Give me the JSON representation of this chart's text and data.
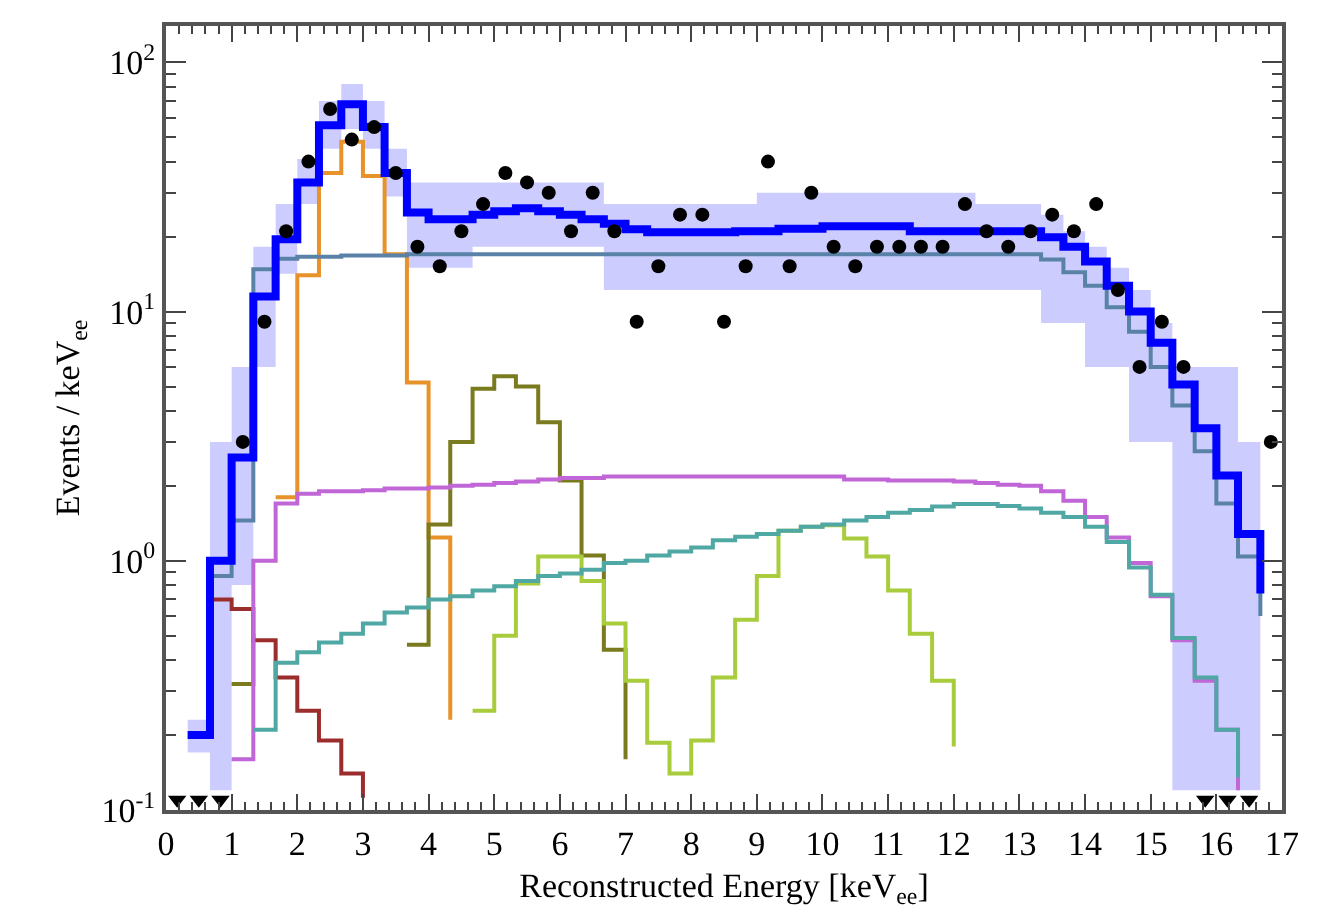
{
  "chart_data": {
    "type": "step",
    "xlabel": "Reconstructed Energy [keV$_{ee}$]",
    "ylabel": "Events / keV$_{ee}$",
    "log": true,
    "grid": false,
    "xlim": [
      0,
      17
    ],
    "xticks": [
      0,
      1,
      2,
      3,
      4,
      5,
      6,
      7,
      8,
      9,
      10,
      11,
      12,
      13,
      14,
      15,
      16,
      17
    ],
    "ylim": [
      0.1,
      140
    ],
    "yticks": [
      {
        "value": 0.1,
        "label": "10$^{-1}$"
      },
      {
        "value": 1,
        "label": "10$^{0}$"
      },
      {
        "value": 10,
        "label": "10$^{1}$"
      },
      {
        "value": 100,
        "label": "10$^{2}$"
      }
    ],
    "series": [
      {
        "color": "#9b2d2d",
        "x": [
          0.67,
          1,
          1.33,
          1.67,
          2,
          2.33,
          2.67,
          3
        ],
        "values": [
          0.7,
          0.64,
          0.48,
          0.34,
          0.25,
          0.19,
          0.14,
          0.112
        ]
      },
      {
        "color": "#e8922a",
        "x": [
          1.67,
          2,
          2.33,
          2.67,
          3,
          3.33,
          3.67,
          4,
          4.33
        ],
        "values": [
          1.8,
          14,
          36,
          48,
          35,
          17,
          5.2,
          1.24,
          0.23
        ]
      },
      {
        "color": "#7a7a1e",
        "x": [
          1,
          1.33,
          1.67,
          2,
          2.33,
          2.67,
          3,
          3.33,
          3.67,
          4,
          4.33,
          4.67,
          5,
          5.33,
          5.67,
          6,
          6.33,
          6.67,
          7
        ],
        "values": [
          0.32,
          0.51,
          null,
          null,
          null,
          null,
          null,
          null,
          0.46,
          1.4,
          3.0,
          4.9,
          5.5,
          5.0,
          3.6,
          2.1,
          1.05,
          0.44,
          0.16
        ]
      },
      {
        "color": "#a8cc3c",
        "x": [
          4.67,
          5,
          5.33,
          5.67,
          6,
          6.33,
          6.67,
          7,
          7.33,
          7.67,
          8,
          8.33,
          8.67,
          9,
          9.33,
          9.67,
          10,
          10.33,
          10.67,
          11,
          11.33,
          11.67,
          12
        ],
        "values": [
          0.25,
          0.5,
          0.81,
          1.04,
          1.04,
          0.83,
          0.56,
          0.33,
          0.186,
          0.14,
          0.19,
          0.34,
          0.58,
          0.87,
          1.32,
          1.37,
          1.39,
          1.23,
          1.04,
          0.76,
          0.51,
          0.33,
          0.18
        ]
      },
      {
        "color": "#c066d6",
        "x": [
          1,
          1.33,
          1.67,
          2,
          2.33,
          2.67,
          3,
          3.33,
          3.67,
          4,
          4.33,
          4.67,
          5,
          5.33,
          5.67,
          6,
          6.33,
          6.67,
          7,
          7.33,
          7.67,
          8,
          8.33,
          8.67,
          9,
          9.33,
          9.67,
          10,
          10.33,
          10.67,
          11,
          11.33,
          11.67,
          12,
          12.33,
          12.67,
          13,
          13.33,
          13.67,
          14,
          14.33,
          14.67,
          15,
          15.33,
          15.67,
          16,
          16.33
        ],
        "values": [
          0.16,
          1.0,
          1.7,
          1.86,
          1.9,
          1.9,
          1.92,
          1.95,
          1.95,
          1.97,
          2.0,
          2.02,
          2.05,
          2.08,
          2.12,
          2.15,
          2.15,
          2.18,
          2.18,
          2.18,
          2.18,
          2.18,
          2.18,
          2.18,
          2.18,
          2.18,
          2.18,
          2.18,
          2.12,
          2.12,
          2.1,
          2.1,
          2.1,
          2.08,
          2.05,
          2.02,
          2.0,
          1.9,
          1.74,
          1.5,
          1.24,
          0.98,
          0.72,
          0.48,
          0.33,
          0.21,
          0.12
        ]
      },
      {
        "color": "#4fa8a3",
        "x": [
          1.33,
          1.67,
          2,
          2.33,
          2.67,
          3,
          3.33,
          3.67,
          4,
          4.33,
          4.67,
          5,
          5.33,
          5.67,
          6,
          6.33,
          6.67,
          7,
          7.33,
          7.67,
          8,
          8.33,
          8.67,
          9,
          9.33,
          9.67,
          10,
          10.33,
          10.67,
          11,
          11.33,
          11.67,
          12,
          12.33,
          12.67,
          13,
          13.33,
          13.67,
          14,
          14.33,
          14.67,
          15,
          15.33,
          15.67,
          16,
          16.33
        ],
        "values": [
          0.21,
          0.39,
          0.43,
          0.47,
          0.51,
          0.56,
          0.62,
          0.65,
          0.7,
          0.72,
          0.76,
          0.79,
          0.83,
          0.87,
          0.89,
          0.92,
          0.98,
          1.0,
          1.05,
          1.09,
          1.13,
          1.21,
          1.25,
          1.28,
          1.32,
          1.37,
          1.4,
          1.45,
          1.5,
          1.56,
          1.6,
          1.65,
          1.69,
          1.69,
          1.66,
          1.62,
          1.56,
          1.5,
          1.37,
          1.19,
          0.94,
          0.73,
          0.49,
          0.34,
          0.21,
          0.135
        ]
      },
      {
        "color": "#5a82a8",
        "x": [
          0.67,
          1,
          1.33,
          1.67,
          2,
          2.33,
          2.67,
          3,
          3.33,
          3.67,
          4,
          4.33,
          4.67,
          5,
          5.33,
          5.67,
          6,
          6.33,
          6.67,
          7,
          7.33,
          7.67,
          8,
          8.33,
          8.67,
          9,
          9.33,
          9.67,
          10,
          10.33,
          10.67,
          11,
          11.33,
          11.67,
          12,
          12.33,
          12.67,
          13,
          13.33,
          13.67,
          14,
          14.33,
          14.67,
          15,
          15.33,
          15.67,
          16,
          16.33,
          16.67
        ],
        "values": [
          0.87,
          1.45,
          14.8,
          16.3,
          16.6,
          16.6,
          16.8,
          16.8,
          16.8,
          17,
          17,
          17,
          17,
          17,
          17,
          17,
          17,
          17,
          17,
          17,
          17,
          17,
          17,
          17,
          17,
          17,
          17,
          17,
          17,
          17,
          17,
          17,
          17,
          17,
          17,
          17,
          17,
          17,
          16.2,
          14.4,
          12.7,
          10.4,
          8.3,
          6.0,
          4.2,
          2.75,
          1.7,
          1.04,
          0.6
        ]
      },
      {
        "color": "#0000ff",
        "x": [
          0.33,
          0.67,
          1,
          1.33,
          1.67,
          2,
          2.33,
          2.67,
          3,
          3.33,
          3.67,
          4,
          4.33,
          4.67,
          5,
          5.33,
          5.67,
          6,
          6.33,
          6.67,
          7,
          7.33,
          7.67,
          8,
          8.33,
          8.67,
          9,
          9.33,
          9.67,
          10,
          10.33,
          10.67,
          11,
          11.33,
          11.67,
          12,
          12.33,
          12.67,
          13,
          13.33,
          13.67,
          14,
          14.33,
          14.67,
          15,
          15.33,
          15.67,
          16,
          16.33,
          16.67
        ],
        "values": [
          0.2,
          1.0,
          2.6,
          11.5,
          19.5,
          33,
          56,
          68,
          55,
          36,
          25,
          23.5,
          23.5,
          24.5,
          25.3,
          26,
          25.3,
          24.5,
          23.5,
          22.5,
          21.4,
          20.8,
          20.8,
          20.8,
          20.8,
          21,
          21,
          21.5,
          21.5,
          22,
          22,
          22,
          22,
          21,
          21,
          21,
          21,
          21,
          21,
          19.9,
          18.2,
          15.9,
          12.7,
          10,
          7.5,
          5.1,
          3.4,
          2.2,
          1.28,
          0.74
        ],
        "lower": [
          0.17,
          0.12,
          0.8,
          6,
          14.2,
          27,
          45,
          54,
          45,
          29,
          15,
          15,
          15,
          18.2,
          18.2,
          18.2,
          18.2,
          18.2,
          18.2,
          12.2,
          12.2,
          12.2,
          12.2,
          12.2,
          12.2,
          12.2,
          12.2,
          12.2,
          12.2,
          12.2,
          12.2,
          12.2,
          12.2,
          12.2,
          12.2,
          12.2,
          12.2,
          12.2,
          12.2,
          9,
          9,
          6,
          6,
          3,
          3,
          0.12,
          0.12,
          0.12,
          0.12,
          0.12
        ],
        "upper": [
          0.23,
          3.0,
          6.0,
          18.2,
          27,
          41,
          70,
          82,
          70,
          45,
          33,
          33,
          33,
          33,
          33,
          33,
          33,
          33,
          33,
          27,
          27,
          27,
          27,
          27,
          27,
          27,
          30,
          30,
          30,
          30,
          30,
          30,
          30,
          30,
          30,
          30,
          27,
          27,
          27,
          24.5,
          21,
          18.2,
          15,
          12.2,
          9,
          6,
          6,
          6,
          3,
          3
        ]
      },
      {
        "type": "scatter",
        "color": "#000000",
        "marker": "circle",
        "x": [
          1.17,
          1.5,
          1.83,
          2.17,
          2.5,
          2.83,
          3.17,
          3.5,
          3.83,
          4.17,
          4.5,
          4.83,
          5.17,
          5.5,
          5.83,
          6.17,
          6.5,
          6.83,
          7.17,
          7.5,
          7.83,
          8.17,
          8.5,
          8.83,
          9.17,
          9.5,
          9.83,
          10.17,
          10.5,
          10.83,
          11.17,
          11.5,
          11.83,
          12.17,
          12.5,
          12.83,
          13.17,
          13.5,
          13.83,
          14.17,
          14.5,
          14.83,
          15.17,
          15.5,
          16.83
        ],
        "values": [
          3.0,
          9.1,
          21,
          40,
          65,
          49,
          55,
          36,
          18.2,
          15.2,
          21,
          27,
          36,
          33,
          30,
          21,
          30,
          21,
          9.1,
          15.2,
          24.5,
          24.5,
          9.1,
          15.2,
          40,
          15.2,
          30,
          18.2,
          15.2,
          18.2,
          18.2,
          18.2,
          18.2,
          27,
          21,
          18.2,
          21,
          24.5,
          21,
          27,
          12.2,
          6.0,
          9.1,
          6.0,
          3.0
        ]
      },
      {
        "type": "scatter",
        "color": "#000000",
        "marker": "triangle",
        "x": [
          0.17,
          0.5,
          0.83,
          15.83,
          16.17,
          16.5
        ],
        "values": [
          0.11,
          0.11,
          0.11,
          0.11,
          0.11,
          0.11
        ]
      }
    ]
  }
}
